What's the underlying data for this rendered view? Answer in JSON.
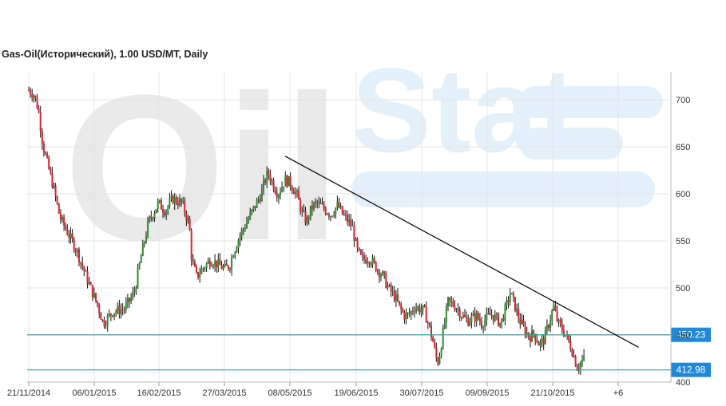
{
  "title": "Gas-Oil(Исторический), 1.00 USD/MT, Daily",
  "watermark": {
    "left": "Oil",
    "right": "Stat"
  },
  "colors": {
    "up": "#2e8b2e",
    "down": "#d9232d",
    "level_line": "#3aa0a0",
    "level_tag": "#1f88d9",
    "grid": "#e4e4e4",
    "trendline": "#000000"
  },
  "chart_data": {
    "type": "candlestick",
    "title": "Gas-Oil(Исторический), 1.00 USD/MT, Daily",
    "xlabel": "",
    "ylabel": "",
    "ylim": [
      400,
      720
    ],
    "y_ticks": [
      700,
      650,
      600,
      550,
      500,
      450,
      400
    ],
    "x_ticks": [
      "21/11/2014",
      "06/01/2015",
      "16/02/2015",
      "27/03/2015",
      "08/05/2015",
      "19/06/2015",
      "30/07/2015",
      "09/09/2015",
      "21/10/2015",
      "+6"
    ],
    "grid": true,
    "price_path": [
      [
        0,
        710
      ],
      [
        4,
        706
      ],
      [
        8,
        690
      ],
      [
        12,
        650
      ],
      [
        16,
        630
      ],
      [
        20,
        610
      ],
      [
        26,
        575
      ],
      [
        30,
        565
      ],
      [
        40,
        540
      ],
      [
        50,
        505
      ],
      [
        58,
        480
      ],
      [
        62,
        463
      ],
      [
        66,
        468
      ],
      [
        70,
        475
      ],
      [
        80,
        478
      ],
      [
        88,
        495
      ],
      [
        94,
        535
      ],
      [
        100,
        570
      ],
      [
        108,
        590
      ],
      [
        114,
        582
      ],
      [
        120,
        595
      ],
      [
        128,
        590
      ],
      [
        134,
        567
      ],
      [
        136,
        530
      ],
      [
        140,
        512
      ],
      [
        146,
        522
      ],
      [
        152,
        530
      ],
      [
        158,
        525
      ],
      [
        164,
        520
      ],
      [
        168,
        525
      ],
      [
        170,
        535
      ],
      [
        176,
        555
      ],
      [
        182,
        570
      ],
      [
        188,
        585
      ],
      [
        194,
        600
      ],
      [
        198,
        618
      ],
      [
        200,
        622
      ],
      [
        204,
        610
      ],
      [
        208,
        600
      ],
      [
        214,
        615
      ],
      [
        218,
        612
      ],
      [
        224,
        598
      ],
      [
        228,
        580
      ],
      [
        232,
        570
      ],
      [
        236,
        585
      ],
      [
        240,
        590
      ],
      [
        246,
        585
      ],
      [
        252,
        578
      ],
      [
        258,
        588
      ],
      [
        262,
        578
      ],
      [
        266,
        572
      ],
      [
        270,
        565
      ],
      [
        274,
        540
      ],
      [
        278,
        530
      ],
      [
        284,
        532
      ],
      [
        290,
        522
      ],
      [
        296,
        512
      ],
      [
        300,
        500
      ],
      [
        306,
        490
      ],
      [
        310,
        478
      ],
      [
        314,
        470
      ],
      [
        318,
        472
      ],
      [
        322,
        480
      ],
      [
        326,
        478
      ],
      [
        330,
        476
      ],
      [
        334,
        460
      ],
      [
        338,
        440
      ],
      [
        340,
        425
      ],
      [
        342,
        422
      ],
      [
        344,
        438
      ],
      [
        348,
        470
      ],
      [
        350,
        485
      ],
      [
        354,
        483
      ],
      [
        358,
        478
      ],
      [
        362,
        470
      ],
      [
        366,
        465
      ],
      [
        370,
        468
      ],
      [
        374,
        470
      ],
      [
        378,
        462
      ],
      [
        382,
        468
      ],
      [
        386,
        472
      ],
      [
        390,
        468
      ],
      [
        394,
        462
      ],
      [
        398,
        478
      ],
      [
        402,
        495
      ],
      [
        406,
        480
      ],
      [
        410,
        465
      ],
      [
        414,
        455
      ],
      [
        418,
        448
      ],
      [
        422,
        452
      ],
      [
        426,
        440
      ],
      [
        430,
        445
      ],
      [
        434,
        462
      ],
      [
        438,
        480
      ],
      [
        442,
        462
      ],
      [
        446,
        455
      ],
      [
        450,
        445
      ],
      [
        454,
        432
      ],
      [
        458,
        415
      ],
      [
        460,
        420
      ],
      [
        464,
        425
      ]
    ],
    "trendline": {
      "start": {
        "day": 214,
        "value": 640
      },
      "end": {
        "day": 509,
        "value": 437
      }
    },
    "levels": [
      {
        "value": 450.23,
        "label": "450.23"
      },
      {
        "value": 412.98,
        "label": "412.98"
      }
    ]
  }
}
